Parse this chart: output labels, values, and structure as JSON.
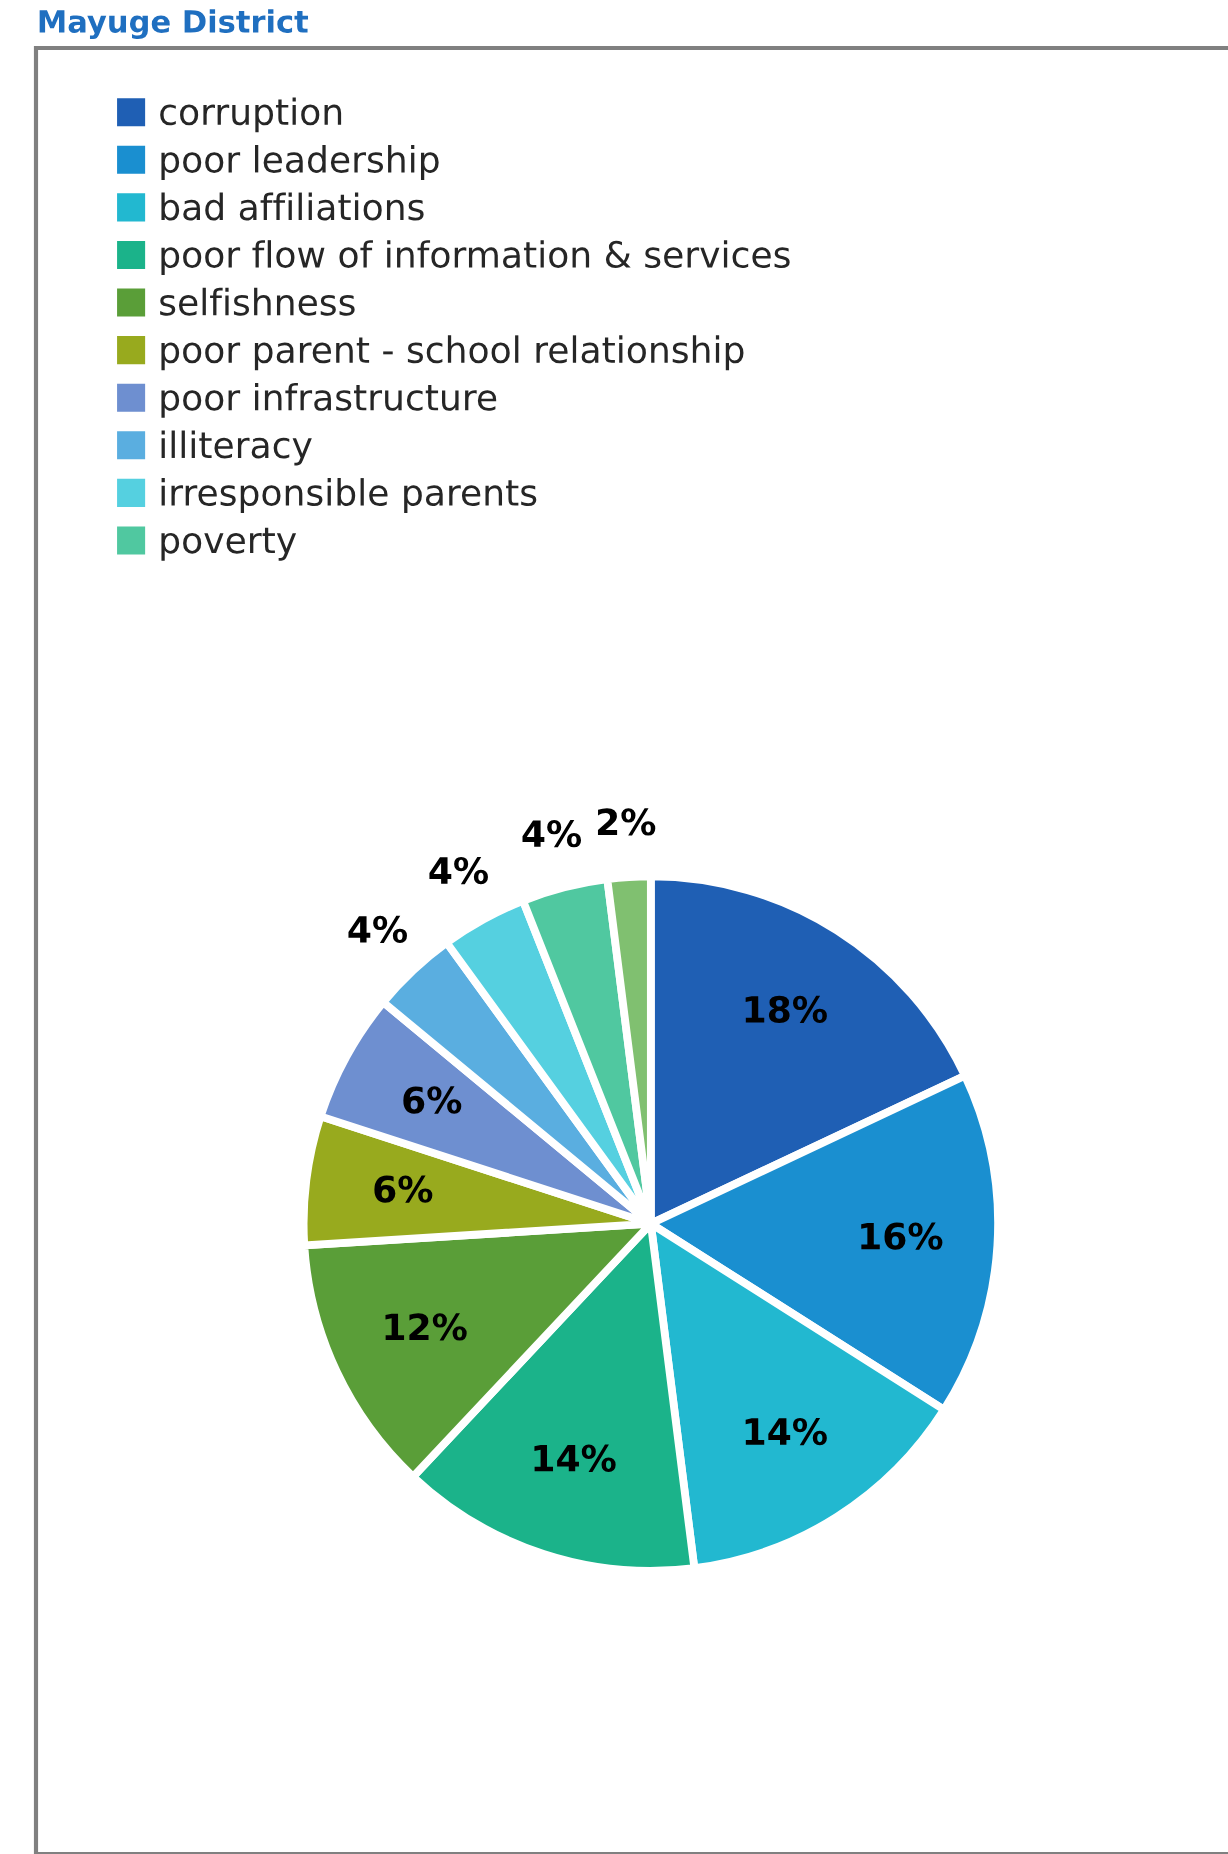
{
  "chart_data": {
    "type": "pie",
    "title": "Mayuge District",
    "categories": [
      "corruption",
      "poor leadership",
      "bad affiliations",
      "poor flow of information & services",
      "selfishness",
      "poor parent - school relationship",
      "poor infrastructure",
      "illiteracy",
      "irresponsible parents",
      "poverty",
      null
    ],
    "values": [
      18,
      16,
      14,
      14,
      12,
      6,
      6,
      4,
      4,
      4,
      2
    ],
    "colors": [
      "#1f5fb4",
      "#1a8fd0",
      "#22b8d0",
      "#1bb38a",
      "#5a9e38",
      "#98aa1e",
      "#6e8fd0",
      "#5aaee0",
      "#55d0e0",
      "#50c8a0",
      "#80c070"
    ],
    "value_labels": [
      "18%",
      "16%",
      "14%",
      "14%",
      "12%",
      "6%",
      "6%",
      "4%",
      "4%",
      "4%",
      "2%"
    ],
    "legend": "top left"
  }
}
